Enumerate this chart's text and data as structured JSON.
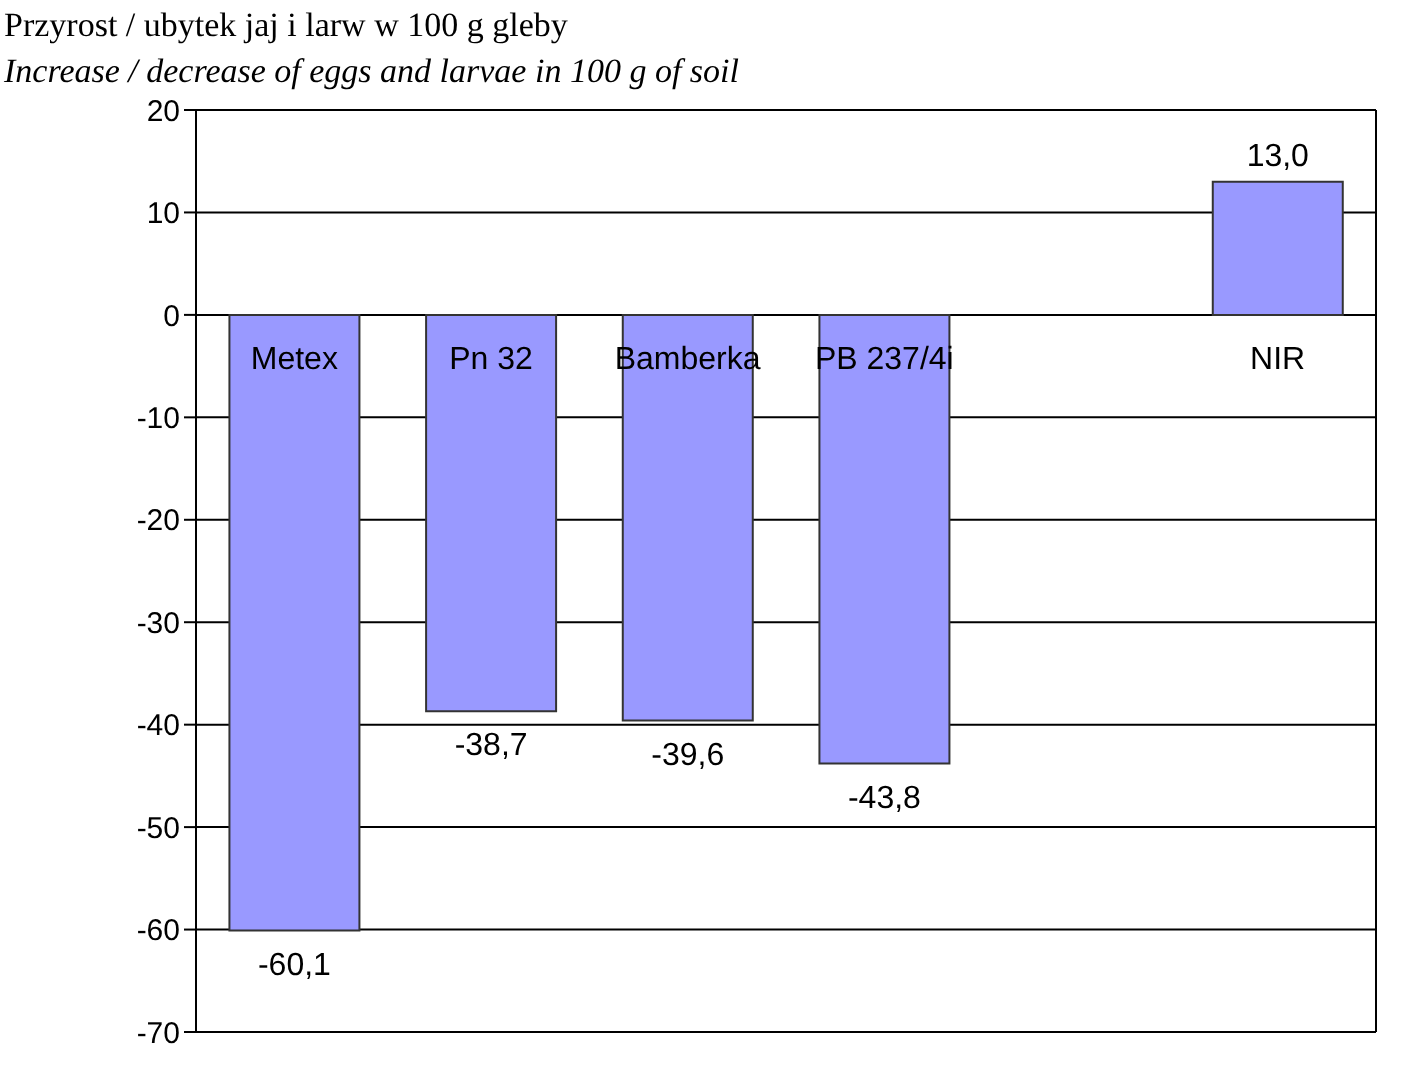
{
  "chart_data": {
    "type": "bar",
    "title": "Przyrost / ubytek jaj i larw w 100 g gleby",
    "subtitle": "Increase / decrease of eggs and larvae in 100 g of soil",
    "categories": [
      "Metex",
      "Pn 32",
      "Bamberka",
      "PB 237/4i",
      null,
      "NIR"
    ],
    "values": [
      -60.1,
      -38.7,
      -39.6,
      -43.8,
      null,
      13.0
    ],
    "value_labels": [
      "-60,1",
      "-38,7",
      "-39,6",
      "-43,8",
      null,
      "13,0"
    ],
    "color": "#9999ff",
    "ylim": [
      -70,
      20
    ],
    "yticks": [
      -70,
      -60,
      -50,
      -40,
      -30,
      -20,
      -10,
      0,
      10,
      20
    ],
    "grid": "y"
  }
}
